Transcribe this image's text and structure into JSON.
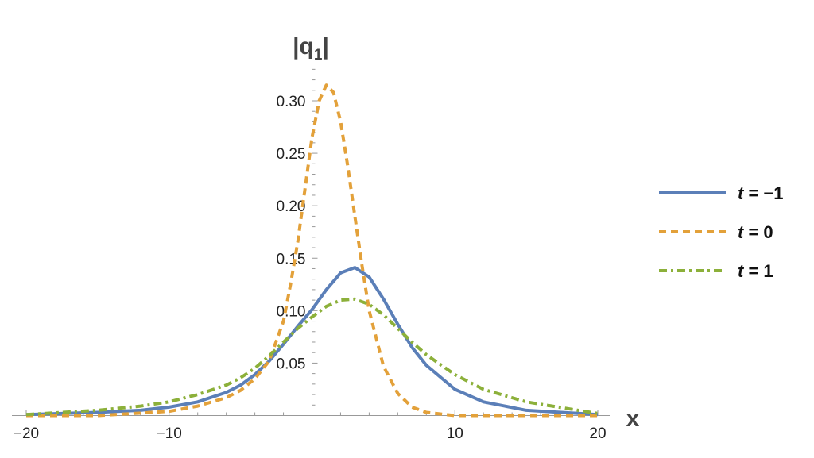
{
  "chart_data": {
    "type": "line",
    "title": "",
    "xlabel": "x",
    "ylabel": "|q",
    "ylabel_sub": "1",
    "ylabel_close": "|",
    "xlim": [
      -20,
      20
    ],
    "ylim": [
      0,
      0.33
    ],
    "xticks": [
      -20,
      -10,
      10,
      20
    ],
    "xtick_labels": [
      "−20",
      "−10",
      "10",
      "20"
    ],
    "yticks": [
      0.05,
      0.1,
      0.15,
      0.2,
      0.25,
      0.3
    ],
    "ytick_labels": [
      "0.05",
      "0.10",
      "0.15",
      "0.20",
      "0.25",
      "0.30"
    ],
    "grid": false,
    "legend_position": "right",
    "series": [
      {
        "name": "t = −1",
        "legend_var": "t",
        "legend_rest": " = −1",
        "color": "#5b7fb8",
        "style": "solid",
        "x": [
          -20,
          -15,
          -12,
          -10,
          -8,
          -6,
          -5,
          -4,
          -3,
          -2,
          -1,
          0,
          1,
          2,
          3,
          4,
          5,
          6,
          7,
          8,
          10,
          12,
          15,
          20
        ],
        "y": [
          0.001,
          0.003,
          0.005,
          0.008,
          0.013,
          0.022,
          0.029,
          0.039,
          0.052,
          0.068,
          0.085,
          0.101,
          0.12,
          0.136,
          0.141,
          0.132,
          0.111,
          0.087,
          0.065,
          0.048,
          0.025,
          0.013,
          0.005,
          0.001
        ]
      },
      {
        "name": "t = 0",
        "legend_var": "t",
        "legend_rest": " = 0",
        "color": "#e3a13a",
        "style": "dashed",
        "x": [
          -20,
          -15,
          -10,
          -8,
          -6,
          -5,
          -4,
          -3,
          -2,
          -1.5,
          -1,
          -0.5,
          0,
          0.5,
          1,
          1.5,
          2,
          2.5,
          3,
          3.5,
          4,
          5,
          6,
          7,
          8,
          10,
          15,
          20
        ],
        "y": [
          0.0,
          0.0,
          0.004,
          0.009,
          0.017,
          0.024,
          0.035,
          0.052,
          0.09,
          0.125,
          0.165,
          0.215,
          0.265,
          0.3,
          0.315,
          0.308,
          0.28,
          0.238,
          0.19,
          0.143,
          0.1,
          0.047,
          0.021,
          0.008,
          0.003,
          0.0,
          0.0,
          0.0
        ]
      },
      {
        "name": "t = 1",
        "legend_var": "t",
        "legend_rest": " = 1",
        "color": "#8cb03a",
        "style": "dashdot",
        "x": [
          -20,
          -15,
          -12,
          -10,
          -8,
          -6,
          -5,
          -4,
          -3,
          -2,
          -1,
          0,
          1,
          2,
          3,
          4,
          5,
          6,
          7,
          8,
          10,
          12,
          15,
          20
        ],
        "y": [
          0.001,
          0.005,
          0.009,
          0.013,
          0.02,
          0.029,
          0.036,
          0.045,
          0.057,
          0.07,
          0.083,
          0.094,
          0.104,
          0.11,
          0.111,
          0.106,
          0.096,
          0.083,
          0.07,
          0.058,
          0.039,
          0.025,
          0.013,
          0.002
        ]
      }
    ]
  }
}
